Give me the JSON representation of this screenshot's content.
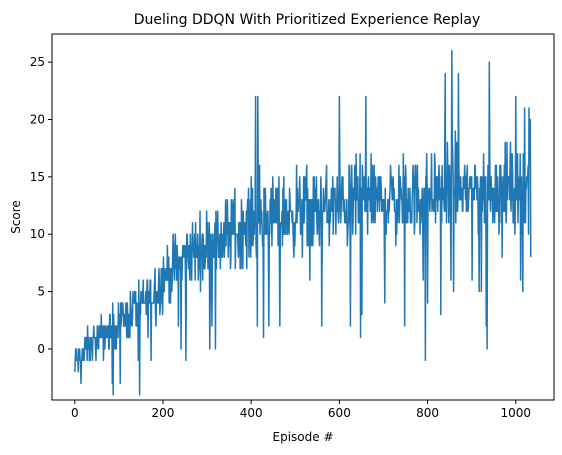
{
  "chart_data": {
    "type": "line",
    "title": "Dueling DDQN With Prioritized Experience Replay",
    "xlabel": "Episode #",
    "ylabel": "Score",
    "xlim": [
      -51.7,
      1086.7
    ],
    "ylim": [
      -4.45,
      27.45
    ],
    "xticks": [
      0,
      200,
      400,
      600,
      800,
      1000
    ],
    "yticks": [
      0,
      5,
      10,
      15,
      20,
      25
    ],
    "grid": false,
    "legend": "none",
    "episodes": 1035,
    "color": "#1f77b4",
    "trend_anchors": [
      [
        0,
        -1
      ],
      [
        40,
        0.5
      ],
      [
        80,
        1.5
      ],
      [
        120,
        3
      ],
      [
        160,
        4
      ],
      [
        200,
        6
      ],
      [
        250,
        8
      ],
      [
        300,
        9
      ],
      [
        350,
        10
      ],
      [
        400,
        11
      ],
      [
        450,
        11.5
      ],
      [
        500,
        12
      ],
      [
        550,
        12
      ],
      [
        600,
        12.5
      ],
      [
        650,
        13
      ],
      [
        700,
        13
      ],
      [
        750,
        13
      ],
      [
        800,
        13.5
      ],
      [
        850,
        14
      ],
      [
        900,
        14
      ],
      [
        950,
        14
      ],
      [
        1000,
        14
      ],
      [
        1034,
        14
      ]
    ],
    "noise_anchors": [
      [
        0,
        1.2
      ],
      [
        100,
        1.8
      ],
      [
        200,
        2.5
      ],
      [
        400,
        3.2
      ],
      [
        1034,
        3.4
      ]
    ],
    "notable_points": [
      [
        0,
        -2
      ],
      [
        85,
        -3
      ],
      [
        410,
        22
      ],
      [
        415,
        22
      ],
      [
        600,
        22
      ],
      [
        660,
        22
      ],
      [
        795,
        -1
      ],
      [
        840,
        24
      ],
      [
        855,
        26
      ],
      [
        870,
        24
      ],
      [
        935,
        0
      ],
      [
        940,
        25
      ],
      [
        1000,
        22
      ],
      [
        1020,
        21
      ],
      [
        1030,
        21
      ],
      [
        1033,
        20
      ],
      [
        1034,
        8
      ]
    ]
  }
}
